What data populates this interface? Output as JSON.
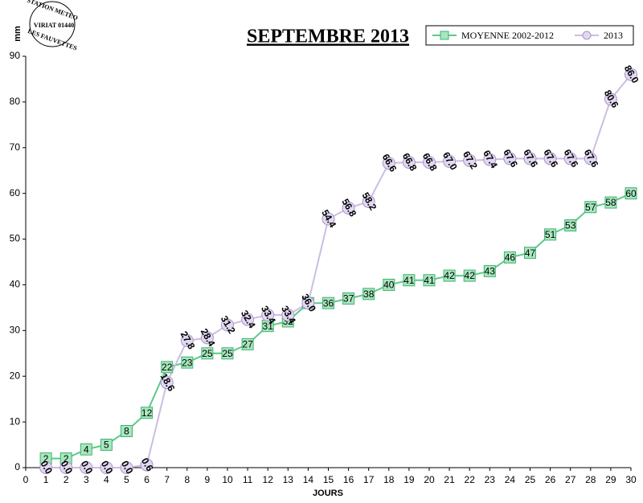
{
  "chart_data": {
    "type": "line",
    "title": "SEPTEMBRE 2013",
    "xlabel": "JOURS",
    "ylabel": "mm",
    "stamp": [
      "STATION METEO",
      "VIRIAT 01440",
      "LES FAUVETTES"
    ],
    "x": [
      1,
      2,
      3,
      4,
      5,
      6,
      7,
      8,
      9,
      10,
      11,
      12,
      13,
      14,
      15,
      16,
      17,
      18,
      19,
      20,
      21,
      22,
      23,
      24,
      25,
      26,
      27,
      28,
      29,
      30
    ],
    "xlim": [
      0,
      30
    ],
    "xticks": [
      0,
      1,
      2,
      3,
      4,
      5,
      6,
      7,
      8,
      9,
      10,
      11,
      12,
      13,
      14,
      15,
      16,
      17,
      18,
      19,
      20,
      21,
      22,
      23,
      24,
      25,
      26,
      27,
      28,
      29,
      30
    ],
    "ylim": [
      0,
      90
    ],
    "yticks": [
      0,
      10,
      20,
      30,
      40,
      50,
      60,
      70,
      80,
      90
    ],
    "grid": false,
    "legend": "top-right",
    "series": [
      {
        "name": "MOYENNE 2002-2012",
        "color": "#5ec98a",
        "marker": "square",
        "values": [
          2,
          2,
          4,
          5,
          8,
          12,
          22,
          23,
          25,
          25,
          27,
          31,
          32,
          36,
          36,
          37,
          38,
          40,
          41,
          41,
          42,
          42,
          43,
          46,
          47,
          51,
          53,
          57,
          58,
          60
        ]
      },
      {
        "name": "2013",
        "color": "#cbbde0",
        "marker": "circle",
        "values": [
          0,
          0,
          0,
          0,
          0,
          0.6,
          18.6,
          27.8,
          28.4,
          31.2,
          32.4,
          33.4,
          33.4,
          36,
          54.4,
          56.8,
          58.2,
          66.6,
          66.8,
          66.8,
          67,
          67.2,
          67.4,
          67.6,
          67.6,
          67.6,
          67.6,
          67.6,
          80.6,
          86
        ],
        "value_labels": [
          "0.0",
          "0.0",
          "0.0",
          "0.0",
          "0.0",
          "0.6",
          "18.6",
          "27.8",
          "28.4",
          "31.2",
          "32.4",
          "33.4",
          "33.4",
          "36.0",
          "54.4",
          "56.8",
          "58.2",
          "66.6",
          "66.8",
          "66.8",
          "67.0",
          "67.2",
          "67.4",
          "67.6",
          "67.6",
          "67.6",
          "67.6",
          "67.6",
          "80.6",
          "86.0"
        ]
      }
    ]
  }
}
